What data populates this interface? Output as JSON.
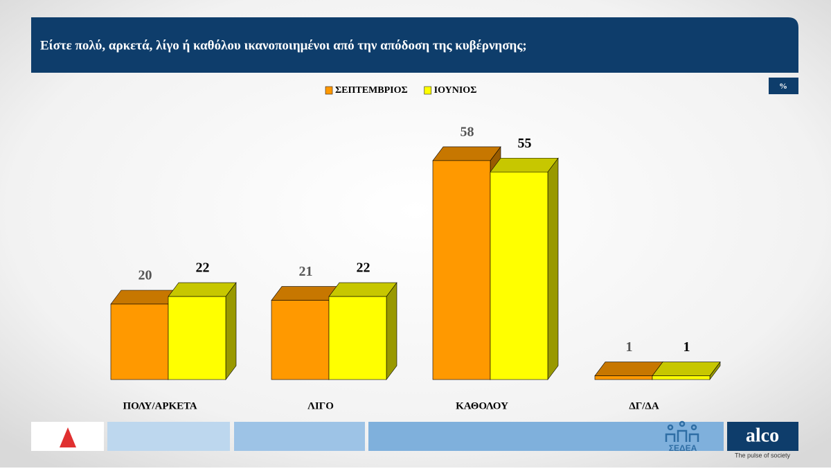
{
  "chart_data": {
    "type": "bar3d",
    "title": "Είστε πολύ, αρκετά, λίγο ή καθόλου ικανοποιημένοι από την  απόδοση της κυβέρνησης;",
    "unit_badge": "%",
    "categories": [
      "ΠΟΛΥ/ΑΡΚΕΤΑ",
      "ΛΙΓΟ",
      "ΚΑΘΟΛΟΥ",
      "ΔΓ/ΔΑ"
    ],
    "series": [
      {
        "name": "ΣΕΠΤΕΜΒΡΙΟΣ",
        "color": "#ff9900",
        "values": [
          20,
          21,
          58,
          1
        ]
      },
      {
        "name": "ΙΟΥΝΙΟΣ",
        "color": "#ffff00",
        "values": [
          22,
          22,
          55,
          1
        ]
      }
    ],
    "legend": "top"
  },
  "footer": {
    "brand": "ΣΕΔΕΑ",
    "logo": "alco",
    "tagline": "The pulse of society"
  }
}
